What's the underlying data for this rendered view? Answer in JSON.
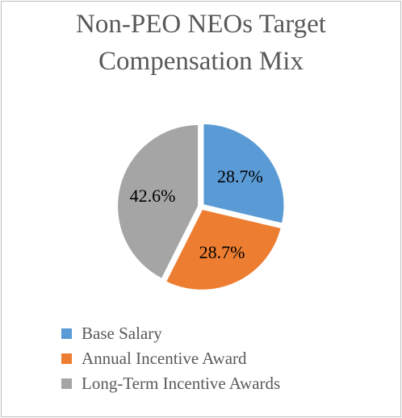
{
  "chart_data": {
    "type": "pie",
    "title_lines": [
      "Non-PEO NEOs Target",
      "Compensation Mix"
    ],
    "slices": [
      {
        "label": "Base Salary",
        "value": 28.7,
        "display": "28.7%",
        "color": "#5b9bd5"
      },
      {
        "label": "Annual Incentive Award",
        "value": 28.7,
        "display": "28.7%",
        "color": "#ed7d31"
      },
      {
        "label": "Long-Term Incentive Awards",
        "value": 42.6,
        "display": "42.6%",
        "color": "#a5a5a5"
      }
    ],
    "legend_position": "bottom-left"
  }
}
